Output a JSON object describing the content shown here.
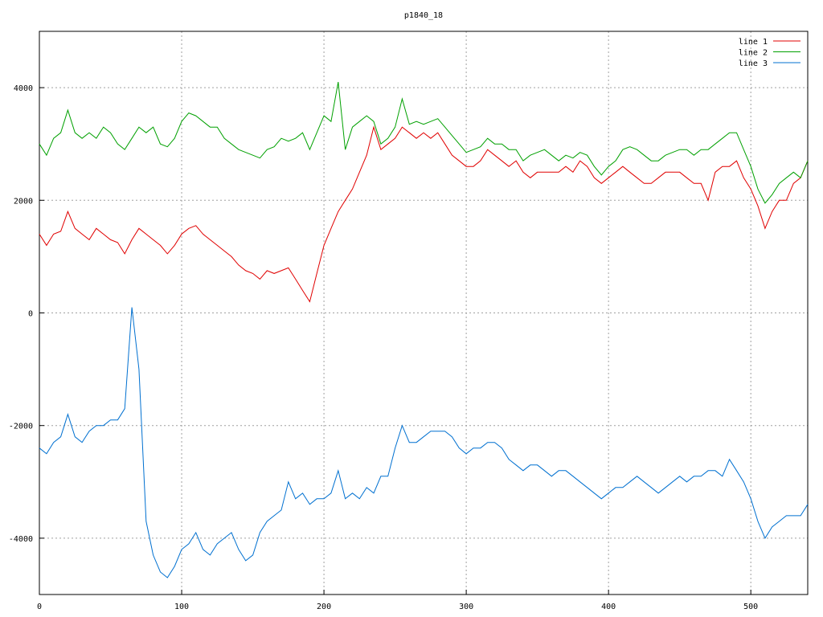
{
  "chart_data": {
    "type": "line",
    "title": "p1840_18",
    "x": [
      0,
      5,
      10,
      15,
      20,
      25,
      30,
      35,
      40,
      45,
      50,
      55,
      60,
      65,
      70,
      75,
      80,
      85,
      90,
      95,
      100,
      105,
      110,
      115,
      120,
      125,
      130,
      135,
      140,
      145,
      150,
      155,
      160,
      165,
      170,
      175,
      180,
      185,
      190,
      195,
      200,
      205,
      210,
      215,
      220,
      225,
      230,
      235,
      240,
      245,
      250,
      255,
      260,
      265,
      270,
      275,
      280,
      285,
      290,
      295,
      300,
      305,
      310,
      315,
      320,
      325,
      330,
      335,
      340,
      345,
      350,
      355,
      360,
      365,
      370,
      375,
      380,
      385,
      390,
      395,
      400,
      405,
      410,
      415,
      420,
      425,
      430,
      435,
      440,
      445,
      450,
      455,
      460,
      465,
      470,
      475,
      480,
      485,
      490,
      495,
      500,
      505,
      510,
      515,
      520,
      525,
      530,
      535,
      540
    ],
    "series": [
      {
        "name": "line 1",
        "color": "#e00000",
        "values": [
          1400,
          1200,
          1400,
          1450,
          1800,
          1500,
          1400,
          1300,
          1500,
          1400,
          1300,
          1250,
          1050,
          1300,
          1500,
          1400,
          1300,
          1200,
          1050,
          1200,
          1400,
          1500,
          1550,
          1400,
          1300,
          1200,
          1100,
          1000,
          850,
          750,
          700,
          600,
          750,
          700,
          750,
          800,
          600,
          400,
          200,
          700,
          1200,
          1500,
          1800,
          2000,
          2200,
          2500,
          2800,
          3300,
          2900,
          3000,
          3100,
          3300,
          3200,
          3100,
          3200,
          3100,
          3200,
          3000,
          2800,
          2700,
          2600,
          2600,
          2700,
          2900,
          2800,
          2700,
          2600,
          2700,
          2500,
          2400,
          2500,
          2500,
          2500,
          2500,
          2600,
          2500,
          2700,
          2600,
          2400,
          2300,
          2400,
          2500,
          2600,
          2500,
          2400,
          2300,
          2300,
          2400,
          2500,
          2500,
          2500,
          2400,
          2300,
          2300,
          2000,
          2500,
          2600,
          2600,
          2700,
          2400,
          2200,
          1900,
          1500,
          1800,
          2000,
          2000,
          2300,
          2400,
          2700
        ]
      },
      {
        "name": "line 2",
        "color": "#00a000",
        "values": [
          3000,
          2800,
          3100,
          3200,
          3600,
          3200,
          3100,
          3200,
          3100,
          3300,
          3200,
          3000,
          2900,
          3100,
          3300,
          3200,
          3300,
          3000,
          2950,
          3100,
          3400,
          3550,
          3500,
          3400,
          3300,
          3300,
          3100,
          3000,
          2900,
          2850,
          2800,
          2750,
          2900,
          2950,
          3100,
          3050,
          3100,
          3200,
          2900,
          3200,
          3500,
          3400,
          4100,
          2900,
          3300,
          3400,
          3500,
          3400,
          3000,
          3100,
          3300,
          3800,
          3350,
          3400,
          3350,
          3400,
          3450,
          3300,
          3150,
          3000,
          2850,
          2900,
          2950,
          3100,
          3000,
          3000,
          2900,
          2900,
          2700,
          2800,
          2850,
          2900,
          2800,
          2700,
          2800,
          2750,
          2850,
          2800,
          2600,
          2450,
          2600,
          2700,
          2900,
          2950,
          2900,
          2800,
          2700,
          2700,
          2800,
          2850,
          2900,
          2900,
          2800,
          2900,
          2900,
          3000,
          3100,
          3200,
          3200,
          2900,
          2600,
          2200,
          1950,
          2100,
          2300,
          2400,
          2500,
          2400,
          2700
        ]
      },
      {
        "name": "line 3",
        "color": "#0070d0",
        "values": [
          -2400,
          -2500,
          -2300,
          -2200,
          -1800,
          -2200,
          -2300,
          -2100,
          -2000,
          -2000,
          -1900,
          -1900,
          -1700,
          100,
          -1000,
          -3700,
          -4300,
          -4600,
          -4700,
          -4500,
          -4200,
          -4100,
          -3900,
          -4200,
          -4300,
          -4100,
          -4000,
          -3900,
          -4200,
          -4400,
          -4300,
          -3900,
          -3700,
          -3600,
          -3500,
          -3000,
          -3300,
          -3200,
          -3400,
          -3300,
          -3300,
          -3200,
          -2800,
          -3300,
          -3200,
          -3300,
          -3100,
          -3200,
          -2900,
          -2900,
          -2400,
          -2000,
          -2300,
          -2300,
          -2200,
          -2100,
          -2100,
          -2100,
          -2200,
          -2400,
          -2500,
          -2400,
          -2400,
          -2300,
          -2300,
          -2400,
          -2600,
          -2700,
          -2800,
          -2700,
          -2700,
          -2800,
          -2900,
          -2800,
          -2800,
          -2900,
          -3000,
          -3100,
          -3200,
          -3300,
          -3200,
          -3100,
          -3100,
          -3000,
          -2900,
          -3000,
          -3100,
          -3200,
          -3100,
          -3000,
          -2900,
          -3000,
          -2900,
          -2900,
          -2800,
          -2800,
          -2900,
          -2600,
          -2800,
          -3000,
          -3300,
          -3700,
          -4000,
          -3800,
          -3700,
          -3600,
          -3600,
          -3600,
          -3400
        ]
      }
    ],
    "xlim": [
      0,
      540
    ],
    "xticks": [
      0,
      100,
      200,
      300,
      400,
      500
    ],
    "ylim": [
      -5000,
      5000
    ],
    "yticks": [
      -4000,
      -2000,
      0,
      2000,
      4000
    ],
    "grid": true,
    "legend": "top-right"
  }
}
